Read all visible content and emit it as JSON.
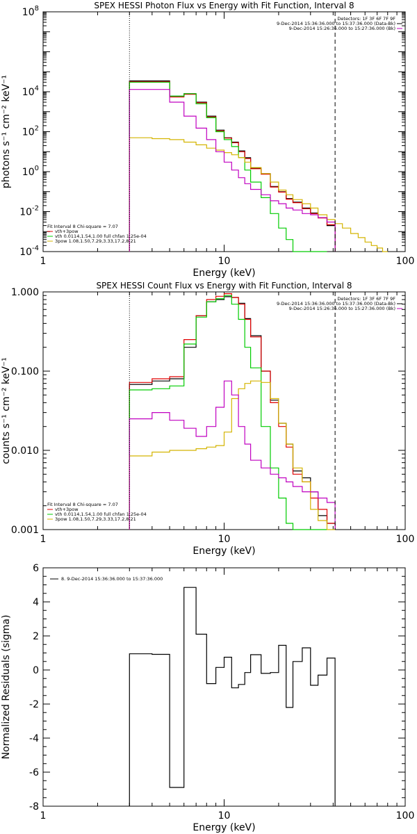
{
  "chart_data": [
    {
      "type": "line",
      "title": "SPEX HESSI Photon Flux vs Energy with Fit Function, Interval 8",
      "xlabel": "Energy (keV)",
      "ylabel": "photons s⁻¹ cm⁻² keV⁻¹",
      "xscale": "log",
      "yscale": "log",
      "xlim": [
        1,
        100
      ],
      "ylim": [
        0.0001,
        100000000
      ],
      "x_ticks": [
        {
          "v": 1,
          "label": "1"
        },
        {
          "v": 10,
          "label": "10"
        },
        {
          "v": 100,
          "label": "100"
        }
      ],
      "y_ticks": [
        {
          "v": 0.0001,
          "base": "10",
          "exp": "-4"
        },
        {
          "v": 0.01,
          "base": "10",
          "exp": "-2"
        },
        {
          "v": 1,
          "base": "10",
          "exp": "0"
        },
        {
          "v": 100,
          "base": "10",
          "exp": "2"
        },
        {
          "v": 10000,
          "base": "10",
          "exp": "4"
        },
        {
          "v": 100000000,
          "base": "10",
          "exp": "8"
        }
      ],
      "vlines": [
        {
          "x": 3.0,
          "style": "dotted"
        },
        {
          "x": 41.0,
          "style": "dashed"
        }
      ],
      "info_lines": [
        "Detectors: 1F 3F 6F 7F 9F",
        "9-Dec-2014 15:36:36.000 to 15:37:36.000 (Data-Bk)",
        "9-Dec-2014 15:26:36.000 to 15:27:36.000 (Bk)"
      ],
      "info_colors": [
        "#000000",
        "#000000",
        "#c000c0"
      ],
      "fit_legend": [
        {
          "text": "Fit Interval 8   Chi-square = 7.07",
          "color": "#000000"
        },
        {
          "text": "vth+3pow",
          "color": "#e00000"
        },
        {
          "text": "vth 0.0114,1.54,1.00  full chfan 1.25e-04",
          "color": "#00cc00"
        },
        {
          "text": "3pow 1.08,1.50,7.29,3.33,17.2,8.21",
          "color": "#d4b400"
        }
      ],
      "series": [
        {
          "key": "data",
          "color": "#000000",
          "edges": [
            3,
            4,
            5,
            6,
            7,
            8,
            9,
            10,
            11,
            12,
            13,
            14,
            16,
            18,
            20,
            22,
            24,
            27,
            30,
            33,
            37,
            41
          ],
          "values": [
            35000,
            35000,
            6000,
            8000,
            3000,
            600,
            120,
            50,
            30,
            11,
            5,
            1.5,
            0.8,
            0.18,
            0.1,
            0.045,
            0.03,
            0.015,
            0.0085,
            0.005,
            0.002
          ]
        },
        {
          "key": "vth3pow",
          "color": "#e00000",
          "edges": [
            3,
            4,
            5,
            6,
            7,
            8,
            9,
            10,
            11,
            12,
            13,
            14,
            16,
            18,
            20,
            22,
            24,
            27,
            30,
            33,
            37,
            41
          ],
          "values": [
            32000,
            32000,
            5500,
            7500,
            2800,
            550,
            110,
            48,
            28,
            10,
            4.5,
            1.4,
            0.75,
            0.17,
            0.095,
            0.042,
            0.028,
            0.014,
            0.008,
            0.0048,
            0.0022
          ]
        },
        {
          "key": "vth",
          "color": "#00cc00",
          "edges": [
            3,
            4,
            5,
            6,
            7,
            8,
            9,
            10,
            11,
            12,
            13,
            14,
            16,
            18,
            20,
            22,
            24,
            27,
            30,
            33,
            37
          ],
          "values": [
            30000,
            30000,
            6000,
            8000,
            2500,
            500,
            100,
            40,
            18,
            5,
            1.2,
            0.3,
            0.05,
            0.008,
            0.0015,
            0.0004,
            0.0001,
            0.0001,
            0.0001,
            0.0001
          ]
        },
        {
          "key": "pow3",
          "color": "#d4b400",
          "edges": [
            3,
            4,
            5,
            6,
            7,
            8,
            9,
            10,
            11,
            12,
            13,
            14,
            16,
            18,
            20,
            22,
            24,
            27,
            30,
            33,
            37,
            41,
            45,
            50,
            55,
            60,
            65,
            70,
            75,
            80
          ],
          "values": [
            50,
            45,
            40,
            30,
            22,
            15,
            12,
            9,
            7,
            5,
            3,
            1.6,
            0.8,
            0.3,
            0.12,
            0.07,
            0.04,
            0.025,
            0.015,
            0.007,
            0.004,
            0.0025,
            0.0015,
            0.0008,
            0.0005,
            0.0003,
            0.0002,
            0.00015,
            0.0001
          ]
        },
        {
          "key": "bk",
          "color": "#c000c0",
          "edges": [
            3,
            4,
            5,
            6,
            7,
            8,
            9,
            10,
            11,
            12,
            13,
            14,
            16,
            18,
            20,
            22,
            24,
            27,
            30,
            33,
            37,
            41
          ],
          "values": [
            13000,
            13000,
            3000,
            600,
            150,
            40,
            10,
            3,
            1.2,
            0.5,
            0.25,
            0.13,
            0.07,
            0.035,
            0.025,
            0.015,
            0.012,
            0.008,
            0.007,
            0.005,
            0.003
          ]
        }
      ]
    },
    {
      "type": "line",
      "title": "SPEX HESSI Count Flux vs Energy with Fit Function, Interval 8",
      "xlabel": "Energy (keV)",
      "ylabel": "counts s⁻¹ cm⁻² keV⁻¹",
      "xscale": "log",
      "yscale": "log",
      "xlim": [
        1,
        100
      ],
      "ylim": [
        0.001,
        1.0
      ],
      "x_ticks": [
        {
          "v": 1,
          "label": "1"
        },
        {
          "v": 10,
          "label": "10"
        },
        {
          "v": 100,
          "label": "100"
        }
      ],
      "y_ticks": [
        {
          "v": 0.001,
          "label": "0.001"
        },
        {
          "v": 0.01,
          "label": "0.010"
        },
        {
          "v": 0.1,
          "label": "0.100"
        },
        {
          "v": 1.0,
          "label": "1.000"
        }
      ],
      "vlines": [
        {
          "x": 3.0,
          "style": "dotted"
        },
        {
          "x": 41.0,
          "style": "dashed"
        }
      ],
      "info_lines": [
        "Detectors: 1F 3F 6F 7F 9F",
        "9-Dec-2014 15:36:36.000 to 15:37:36.000 (Data-Bk)",
        "9-Dec-2014 15:26:36.000 to 15:27:36.000 (Bk)"
      ],
      "info_colors": [
        "#000000",
        "#000000",
        "#c000c0"
      ],
      "fit_legend": [
        {
          "text": "Fit Interval 8   Chi-square = 7.07",
          "color": "#000000"
        },
        {
          "text": "vth+3pow",
          "color": "#e00000"
        },
        {
          "text": "vth 0.0114,1.54,1.00  full chfan 1.25e-04",
          "color": "#00cc00"
        },
        {
          "text": "3pow 1.08,1.50,7.29,3.33,17.2,8.21",
          "color": "#d4b400"
        }
      ],
      "series": [
        {
          "key": "data",
          "color": "#000000",
          "edges": [
            3,
            4,
            5,
            6,
            7,
            8,
            9,
            10,
            11,
            12,
            13,
            14,
            16,
            18,
            20,
            22,
            24,
            27,
            30,
            33,
            37,
            41
          ],
          "values": [
            0.068,
            0.075,
            0.08,
            0.2,
            0.5,
            0.75,
            0.8,
            0.87,
            0.85,
            0.72,
            0.46,
            0.28,
            0.1,
            0.043,
            0.022,
            0.012,
            0.0055,
            0.0045,
            0.003,
            0.0015,
            0.0012
          ]
        },
        {
          "key": "vth3pow",
          "color": "#e00000",
          "edges": [
            3,
            4,
            5,
            6,
            7,
            8,
            9,
            10,
            11,
            12,
            13,
            14,
            16,
            18,
            20,
            22,
            24,
            27,
            30,
            33,
            37,
            41
          ],
          "values": [
            0.072,
            0.08,
            0.085,
            0.25,
            0.5,
            0.8,
            0.88,
            0.95,
            0.85,
            0.7,
            0.45,
            0.27,
            0.1,
            0.04,
            0.02,
            0.011,
            0.005,
            0.004,
            0.0025,
            0.0018,
            0.0012
          ]
        },
        {
          "key": "vth",
          "color": "#00cc00",
          "edges": [
            3,
            4,
            5,
            6,
            7,
            8,
            9,
            10,
            11,
            12,
            13,
            14,
            16,
            18,
            20,
            22,
            24,
            27,
            30,
            33,
            37
          ],
          "values": [
            0.058,
            0.06,
            0.065,
            0.22,
            0.48,
            0.75,
            0.82,
            0.9,
            0.7,
            0.45,
            0.2,
            0.11,
            0.02,
            0.006,
            0.0025,
            0.0012,
            0.001,
            0.001,
            0.001,
            0.001
          ]
        },
        {
          "key": "pow3",
          "color": "#d4b400",
          "edges": [
            3,
            4,
            5,
            6,
            7,
            8,
            9,
            10,
            11,
            12,
            13,
            14,
            16,
            18,
            20,
            22,
            24,
            27,
            30,
            33,
            37,
            41
          ],
          "values": [
            0.0085,
            0.0095,
            0.01,
            0.01,
            0.0105,
            0.011,
            0.0115,
            0.017,
            0.045,
            0.06,
            0.07,
            0.075,
            0.072,
            0.045,
            0.022,
            0.012,
            0.006,
            0.004,
            0.0018,
            0.0013,
            0.001
          ]
        },
        {
          "key": "bk",
          "color": "#c000c0",
          "edges": [
            3,
            4,
            5,
            6,
            7,
            8,
            9,
            10,
            11,
            12,
            13,
            14,
            16,
            18,
            20,
            22,
            24,
            27,
            30,
            33,
            37,
            41
          ],
          "values": [
            0.025,
            0.03,
            0.024,
            0.019,
            0.015,
            0.02,
            0.035,
            0.075,
            0.05,
            0.02,
            0.012,
            0.0075,
            0.006,
            0.005,
            0.0045,
            0.004,
            0.0035,
            0.003,
            0.003,
            0.0025,
            0.0022
          ]
        }
      ]
    },
    {
      "type": "line",
      "title": "",
      "xlabel": "Energy (keV)",
      "ylabel": "Normalized Residuals (sigma)",
      "xscale": "log",
      "yscale": "linear",
      "xlim": [
        1,
        100
      ],
      "ylim": [
        -8,
        6
      ],
      "x_ticks": [
        {
          "v": 1,
          "label": "1"
        },
        {
          "v": 10,
          "label": "10"
        },
        {
          "v": 100,
          "label": "100"
        }
      ],
      "y_ticks": [
        {
          "v": -8,
          "label": "-8"
        },
        {
          "v": -6,
          "label": "-6"
        },
        {
          "v": -4,
          "label": "-4"
        },
        {
          "v": -2,
          "label": "-2"
        },
        {
          "v": 0,
          "label": "0"
        },
        {
          "v": 2,
          "label": "2"
        },
        {
          "v": 4,
          "label": "4"
        },
        {
          "v": 6,
          "label": "6"
        }
      ],
      "legend": {
        "text": "8.  9-Dec-2014 15:36:36.000 to 15:37:36.000",
        "color": "#000000"
      },
      "series": [
        {
          "key": "residuals",
          "color": "#000000",
          "edges": [
            3,
            4,
            5,
            6,
            7,
            8,
            9,
            10,
            11,
            12,
            13,
            14,
            16,
            18,
            20,
            22,
            24,
            27,
            30,
            33,
            37,
            41
          ],
          "values": [
            0.95,
            0.92,
            -6.9,
            4.85,
            2.1,
            -0.8,
            0.15,
            0.75,
            -1.05,
            -0.85,
            -0.15,
            0.9,
            -0.2,
            -0.15,
            1.45,
            -2.2,
            0.5,
            1.3,
            -0.9,
            -0.3,
            0.7
          ]
        }
      ]
    }
  ]
}
